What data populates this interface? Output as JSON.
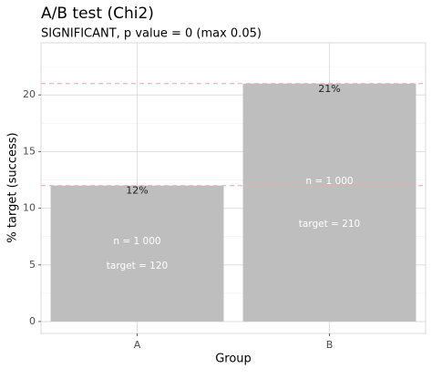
{
  "chart_data": {
    "type": "bar",
    "title": "A/B test (Chi2)",
    "subtitle": "SIGNIFICANT, p value = 0 (max 0.05)",
    "x_label": "Group",
    "y_label": "% target (success)",
    "categories": [
      "A",
      "B"
    ],
    "values": [
      12,
      21
    ],
    "value_labels": [
      "12%",
      "21%"
    ],
    "n_labels": [
      "n = 1 000",
      "n = 1 000"
    ],
    "target_labels": [
      "target = 120",
      "target = 210"
    ],
    "color": "#bebebe",
    "reference_line_color": "#f4a6a6",
    "ylim": [
      -1.05,
      24.6
    ],
    "yticks": [
      0,
      5,
      10,
      15,
      20
    ],
    "minor_yticks": [
      2.5,
      7.5,
      12.5,
      17.5,
      22.5
    ],
    "grid": true
  }
}
